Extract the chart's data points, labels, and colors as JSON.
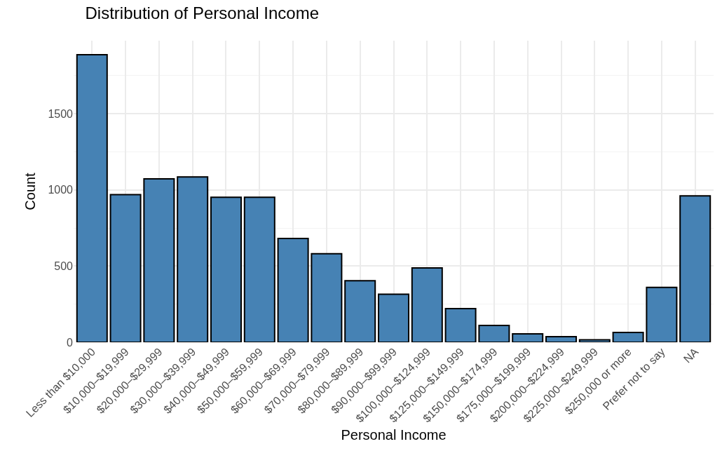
{
  "chart_data": {
    "type": "bar",
    "title": "Distribution of Personal Income",
    "xlabel": "Personal Income",
    "ylabel": "Count",
    "categories": [
      "Less than $10,000",
      "$10,000–$19,999",
      "$20,000–$29,999",
      "$30,000–$39,999",
      "$40,000–$49,999",
      "$50,000–$59,999",
      "$60,000–$69,999",
      "$70,000–$79,999",
      "$80,000–$89,999",
      "$90,000–$99,999",
      "$100,000–$124,999",
      "$125,000–$149,999",
      "$150,000–$174,999",
      "$175,000–$199,999",
      "$200,000–$224,999",
      "$225,000–$249,999",
      "$250,000 or more",
      "Prefer not to say",
      "NA"
    ],
    "values": [
      1888,
      969,
      1073,
      1085,
      952,
      952,
      681,
      581,
      404,
      315,
      488,
      221,
      111,
      55,
      37,
      16,
      64,
      360,
      961
    ],
    "color": "#4682b4",
    "ylim": [
      0,
      1980
    ],
    "yticks": [
      0,
      500,
      1000,
      1500
    ],
    "grid": true
  }
}
